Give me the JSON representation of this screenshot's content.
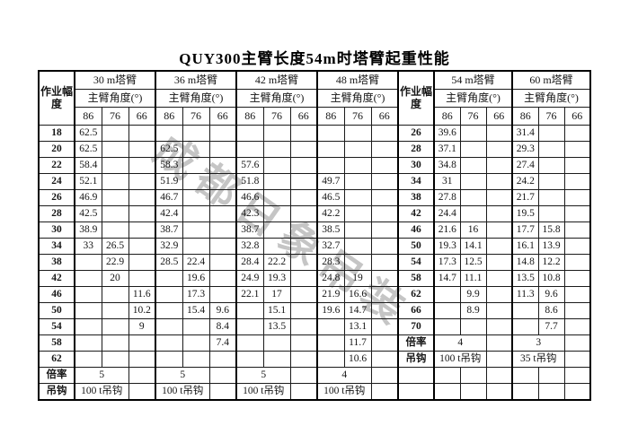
{
  "title": "QUY300主臂长度54m时塔臂起重性能",
  "watermark": "成都日象吊装",
  "colors": {
    "text": "#151515",
    "border": "#000000",
    "watermark": "#b6b6b6"
  },
  "table": {
    "radius_header": "作业幅度",
    "angle_header": "主臂角度(°)",
    "angles": [
      "86",
      "76",
      "66"
    ],
    "left": {
      "sections": [
        "30 m塔臂",
        "36 m塔臂",
        "42 m塔臂",
        "48 m塔臂"
      ],
      "rows": [
        {
          "radius": "18",
          "values": [
            "62.5",
            "",
            "",
            "",
            "",
            "",
            "",
            "",
            "",
            "",
            "",
            ""
          ]
        },
        {
          "radius": "20",
          "values": [
            "62.5",
            "",
            "",
            "62.5",
            "",
            "",
            "",
            "",
            "",
            "",
            "",
            ""
          ]
        },
        {
          "radius": "22",
          "values": [
            "58.4",
            "",
            "",
            "58.3",
            "",
            "",
            "57.6",
            "",
            "",
            "",
            "",
            ""
          ]
        },
        {
          "radius": "24",
          "values": [
            "52.1",
            "",
            "",
            "51.9",
            "",
            "",
            "51.8",
            "",
            "",
            "49.7",
            "",
            ""
          ]
        },
        {
          "radius": "26",
          "values": [
            "46.9",
            "",
            "",
            "46.7",
            "",
            "",
            "46.6",
            "",
            "",
            "46.5",
            "",
            ""
          ]
        },
        {
          "radius": "28",
          "values": [
            "42.5",
            "",
            "",
            "42.4",
            "",
            "",
            "42.3",
            "",
            "",
            "42.2",
            "",
            ""
          ]
        },
        {
          "radius": "30",
          "values": [
            "38.9",
            "",
            "",
            "38.7",
            "",
            "",
            "38.7",
            "",
            "",
            "38.5",
            "",
            ""
          ]
        },
        {
          "radius": "34",
          "values": [
            "33",
            "26.5",
            "",
            "32.9",
            "",
            "",
            "32.8",
            "",
            "",
            "32.7",
            "",
            ""
          ]
        },
        {
          "radius": "38",
          "values": [
            "",
            "22.9",
            "",
            "28.5",
            "22.4",
            "",
            "28.4",
            "22.2",
            "",
            "28.3",
            "",
            ""
          ]
        },
        {
          "radius": "42",
          "values": [
            "",
            "20",
            "",
            "",
            "19.6",
            "",
            "24.9",
            "19.3",
            "",
            "24.8",
            "19",
            ""
          ]
        },
        {
          "radius": "46",
          "values": [
            "",
            "",
            "11.6",
            "",
            "17.3",
            "",
            "22.1",
            "17",
            "",
            "21.9",
            "16.6",
            ""
          ]
        },
        {
          "radius": "50",
          "values": [
            "",
            "",
            "10.2",
            "",
            "15.4",
            "9.6",
            "",
            "15.1",
            "",
            "19.6",
            "14.7",
            ""
          ]
        },
        {
          "radius": "54",
          "values": [
            "",
            "",
            "9",
            "",
            "",
            "8.4",
            "",
            "13.5",
            "",
            "",
            "13.1",
            ""
          ]
        },
        {
          "radius": "58",
          "values": [
            "",
            "",
            "",
            "",
            "",
            "7.4",
            "",
            "",
            "",
            "",
            "11.7",
            ""
          ]
        },
        {
          "radius": "62",
          "values": [
            "",
            "",
            "",
            "",
            "",
            "",
            "",
            "",
            "",
            "",
            "10.6",
            ""
          ]
        }
      ],
      "rate_label": "倍率",
      "rates": [
        "5",
        "5",
        "5",
        "4"
      ],
      "hook_label": "吊钩",
      "hooks": [
        "100 t吊钩",
        "100 t吊钩",
        "100 t吊钩",
        "100 t吊钩"
      ]
    },
    "right": {
      "sections": [
        "54 m塔臂",
        "60 m塔臂"
      ],
      "rows": [
        {
          "radius": "26",
          "values": [
            "39.6",
            "",
            "",
            "31.4",
            "",
            ""
          ]
        },
        {
          "radius": "28",
          "values": [
            "37.1",
            "",
            "",
            "29.3",
            "",
            ""
          ]
        },
        {
          "radius": "30",
          "values": [
            "34.8",
            "",
            "",
            "27.4",
            "",
            ""
          ]
        },
        {
          "radius": "34",
          "values": [
            "31",
            "",
            "",
            "24.2",
            "",
            ""
          ]
        },
        {
          "radius": "38",
          "values": [
            "27.8",
            "",
            "",
            "21.7",
            "",
            ""
          ]
        },
        {
          "radius": "42",
          "values": [
            "24.4",
            "",
            "",
            "19.5",
            "",
            ""
          ]
        },
        {
          "radius": "46",
          "values": [
            "21.6",
            "16",
            "",
            "17.7",
            "15.8",
            ""
          ]
        },
        {
          "radius": "50",
          "values": [
            "19.3",
            "14.1",
            "",
            "16.1",
            "13.9",
            ""
          ]
        },
        {
          "radius": "54",
          "values": [
            "17.3",
            "12.5",
            "",
            "14.8",
            "12.2",
            ""
          ]
        },
        {
          "radius": "58",
          "values": [
            "14.7",
            "11.1",
            "",
            "13.5",
            "10.8",
            ""
          ]
        },
        {
          "radius": "62",
          "values": [
            "",
            "9.9",
            "",
            "11.3",
            "9.6",
            ""
          ]
        },
        {
          "radius": "66",
          "values": [
            "",
            "8.9",
            "",
            "",
            "8.6",
            ""
          ]
        },
        {
          "radius": "70",
          "values": [
            "",
            "",
            "",
            "",
            "7.7",
            ""
          ]
        }
      ],
      "rate_label": "倍率",
      "rates": [
        "4",
        "3"
      ],
      "hook_label": "吊钩",
      "hooks": [
        "100 t吊钩",
        "35 t吊钩"
      ]
    }
  }
}
